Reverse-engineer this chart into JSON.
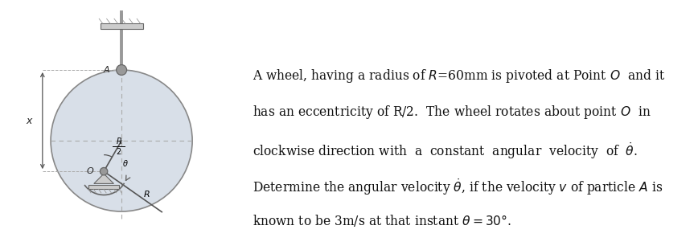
{
  "fig_width": 8.63,
  "fig_height": 3.06,
  "bg_color": "#ffffff",
  "text_lines": [
    "A wheel, having a radius of $R$=60mm is pivoted at Point $O$  and it",
    "has an eccentricity of R/2.  The wheel rotates about point $O$  in",
    "clockwise direction with  a  constant  angular  velocity  of  $\\dot{\\theta}$.",
    "Determine the angular velocity $\\dot{\\theta}$, if the velocity $v$ of particle $A$ is",
    "known to be 3m/s at that instant $\\theta = 30°$."
  ],
  "wheel_color": "#d8dfe8",
  "wheel_edge_color": "#888888",
  "line_color": "#555555",
  "dash_color": "#aaaaaa",
  "gray_dark": "#666666",
  "gray_mid": "#999999",
  "gray_light": "#cccccc"
}
